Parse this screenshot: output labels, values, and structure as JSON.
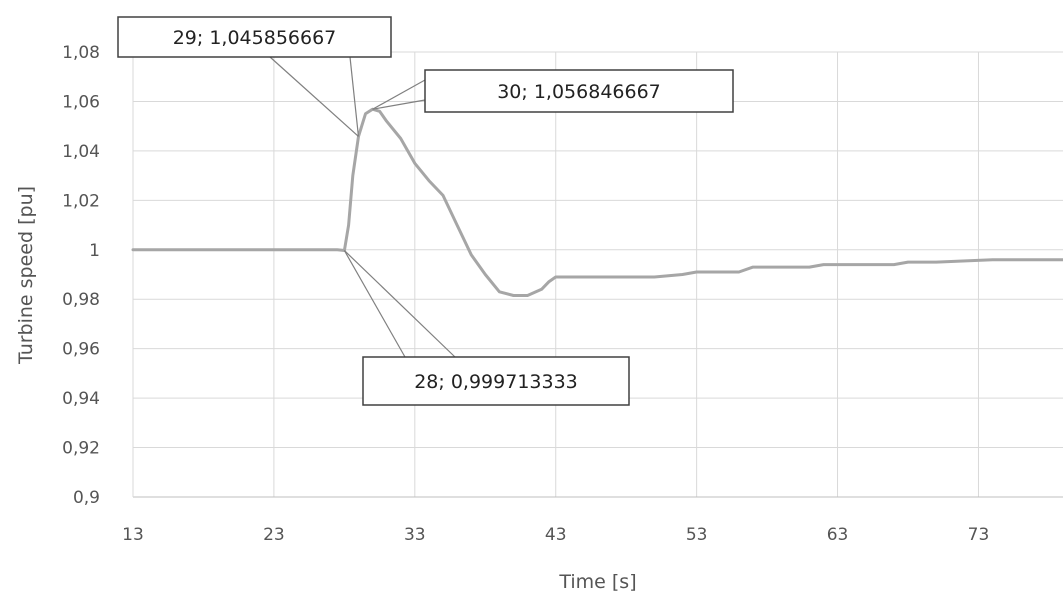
{
  "chart_data": {
    "type": "line",
    "title": "",
    "xlabel": "Time [s]",
    "ylabel": "Turbine speed [pu]",
    "xlim": [
      13,
      79
    ],
    "ylim": [
      0.9,
      1.08
    ],
    "x_ticks": [
      13,
      23,
      33,
      43,
      53,
      63,
      73
    ],
    "x_tick_labels": [
      "13",
      "23",
      "33",
      "43",
      "53",
      "63",
      "73"
    ],
    "y_ticks": [
      0.9,
      0.92,
      0.94,
      0.96,
      0.98,
      1.0,
      1.02,
      1.04,
      1.06,
      1.08
    ],
    "y_tick_labels": [
      "0,9",
      "0,92",
      "0,94",
      "0,96",
      "0,98",
      "1",
      "1,02",
      "1,04",
      "1,06",
      "1,08"
    ],
    "grid": true,
    "legend": "none",
    "line_color": "#a6a6a6",
    "series": [
      {
        "x": [
          13,
          20,
          27,
          27.5,
          28,
          28.3,
          28.6,
          29,
          29.5,
          30,
          30.5,
          31,
          32,
          33,
          34,
          35,
          36,
          37,
          38,
          39,
          40,
          41,
          42,
          42.5,
          43,
          44,
          46,
          48,
          50,
          52,
          53,
          55,
          56,
          57,
          59,
          61,
          62,
          64,
          67,
          68,
          70,
          74,
          75,
          79
        ],
        "y": [
          1.0,
          1.0,
          1.0,
          1.0,
          0.999713333,
          1.01,
          1.03,
          1.045856667,
          1.055,
          1.056846667,
          1.056,
          1.052,
          1.045,
          1.035,
          1.028,
          1.022,
          1.01,
          0.998,
          0.99,
          0.983,
          0.9815,
          0.9815,
          0.984,
          0.987,
          0.989,
          0.989,
          0.989,
          0.989,
          0.989,
          0.99,
          0.991,
          0.991,
          0.991,
          0.993,
          0.993,
          0.993,
          0.994,
          0.994,
          0.994,
          0.995,
          0.995,
          0.996,
          0.996,
          0.996
        ]
      }
    ],
    "annotations": [
      {
        "text": "29; 1,045856667",
        "x": 29,
        "y": 1.045856667
      },
      {
        "text": "30; 1,056846667",
        "x": 30,
        "y": 1.056846667
      },
      {
        "text": "28; 0,999713333",
        "x": 28,
        "y": 0.999713333
      }
    ]
  }
}
